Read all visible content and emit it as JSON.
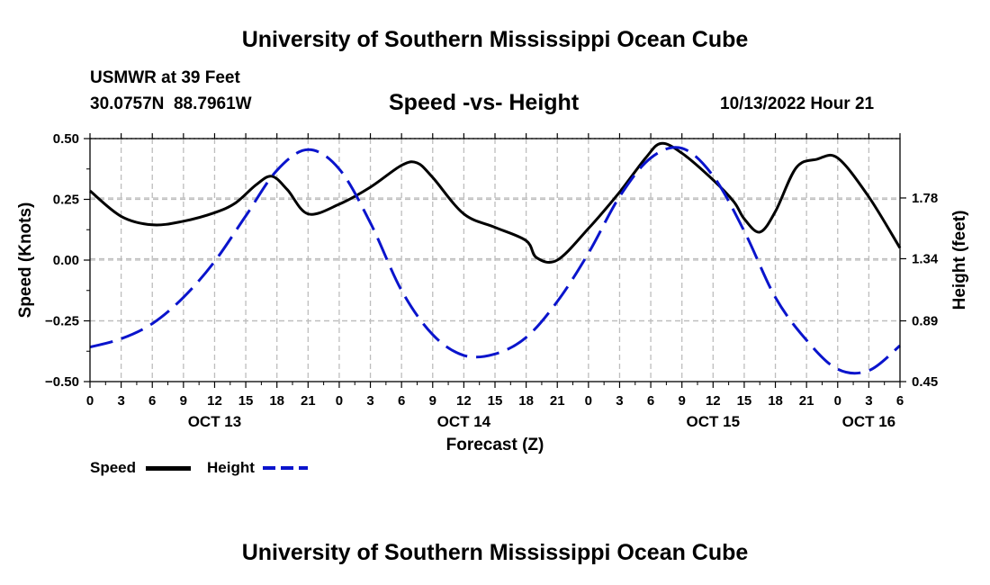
{
  "page": {
    "title_top": "University of Southern Mississippi Ocean Cube",
    "title_bottom": "University of Southern Mississippi Ocean Cube",
    "station": "USMWR at 39 Feet",
    "coords": "30.0757N  88.7961W",
    "subtitle": "Speed -vs- Height",
    "datetime": "10/13/2022 Hour 21"
  },
  "colors": {
    "speed": "#000000",
    "height": "#0a14cc",
    "grid": "#bdbdbd"
  },
  "chart_data": {
    "type": "line",
    "title": "Speed -vs- Height",
    "xlabel": "Forecast (Z)",
    "ylabel_left": "Speed (Knots)",
    "ylabel_right": "Height (feet)",
    "x_unit": "hours from Oct 13 00Z",
    "xlim": [
      0,
      78
    ],
    "ylim_left": [
      -0.5,
      0.5
    ],
    "ylim_right": [
      0.45,
      2.21
    ],
    "x_ticks": [
      0,
      3,
      6,
      9,
      12,
      15,
      18,
      21,
      24,
      27,
      30,
      33,
      36,
      39,
      42,
      45,
      48,
      51,
      54,
      57,
      60,
      63,
      66,
      69,
      72,
      75,
      78
    ],
    "x_tick_labels": [
      "0",
      "3",
      "6",
      "9",
      "12",
      "15",
      "18",
      "21",
      "0",
      "3",
      "6",
      "9",
      "12",
      "15",
      "18",
      "21",
      "0",
      "3",
      "6",
      "9",
      "12",
      "15",
      "18",
      "21",
      "0",
      "3",
      "6"
    ],
    "date_labels": [
      {
        "x": 12,
        "label": "OCT 13"
      },
      {
        "x": 36,
        "label": "OCT 14"
      },
      {
        "x": 60,
        "label": "OCT 15"
      },
      {
        "x": 75,
        "label": "OCT 16"
      }
    ],
    "y_left_ticks": [
      0.5,
      0.25,
      0.0,
      -0.25,
      -0.5
    ],
    "y_left_tick_labels": [
      "0.50",
      "0.25",
      "0.00",
      "−0.25",
      "−0.50"
    ],
    "y_right_ticks": [
      1.78,
      1.34,
      0.89,
      0.45
    ],
    "y_right_tick_labels": [
      "1.78",
      "1.34",
      "0.89",
      "0.45"
    ],
    "series": [
      {
        "name": "Speed",
        "axis": "left",
        "style": "solid",
        "x": [
          0,
          3,
          6,
          9,
          12,
          14,
          16,
          17.5,
          19,
          21,
          24,
          27,
          30,
          31.5,
          33,
          36,
          39,
          42,
          43,
          45,
          48,
          51,
          53.5,
          55,
          57,
          60,
          62,
          63,
          64.5,
          66,
          68,
          70,
          72,
          75,
          78
        ],
        "values": [
          0.285,
          0.18,
          0.145,
          0.16,
          0.195,
          0.235,
          0.31,
          0.345,
          0.29,
          0.19,
          0.23,
          0.3,
          0.39,
          0.4,
          0.34,
          0.19,
          0.135,
          0.08,
          0.01,
          0.0,
          0.13,
          0.28,
          0.42,
          0.48,
          0.44,
          0.33,
          0.24,
          0.17,
          0.115,
          0.2,
          0.38,
          0.415,
          0.42,
          0.26,
          0.05
        ]
      },
      {
        "name": "Height",
        "axis": "right",
        "style": "dashed",
        "x": [
          0,
          3,
          6,
          9,
          12,
          15,
          18,
          21,
          24,
          27,
          30,
          33,
          36,
          39,
          42,
          45,
          48,
          51,
          54,
          57,
          60,
          63,
          66,
          69,
          72,
          75,
          78
        ],
        "values": [
          0.7,
          0.76,
          0.87,
          1.06,
          1.32,
          1.65,
          1.98,
          2.13,
          1.99,
          1.6,
          1.11,
          0.79,
          0.64,
          0.65,
          0.77,
          1.03,
          1.38,
          1.79,
          2.07,
          2.14,
          1.94,
          1.54,
          1.06,
          0.75,
          0.54,
          0.53,
          0.71
        ]
      }
    ],
    "legend": [
      {
        "label": "Speed",
        "series": "Speed"
      },
      {
        "label": "Height",
        "series": "Height"
      }
    ]
  }
}
